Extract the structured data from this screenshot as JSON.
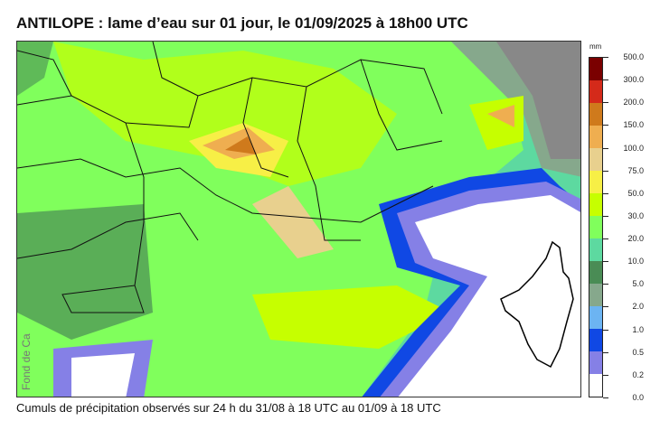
{
  "title": "ANTILOPE : lame d’eau sur 01 jour, le 01/09/2025 à 18h00 UTC",
  "caption": "Cumuls de précipitation observés sur 24 h du 31/08 à 18 UTC au 01/09 à 18 UTC",
  "watermark": "Fond de Ca",
  "legend": {
    "unit": "mm",
    "labels": [
      "500.0",
      "300.0",
      "200.0",
      "150.0",
      "100.0",
      "75.0",
      "50.0",
      "30.0",
      "20.0",
      "10.0",
      "5.0",
      "2.0",
      "1.0",
      "0.5",
      "0.2",
      "0.0"
    ],
    "colors": [
      "#7a0000",
      "#d42a1a",
      "#cf7a1c",
      "#efae50",
      "#e8d08e",
      "#f7ef46",
      "#c6ff00",
      "#80ff5c",
      "#5dd9a0",
      "#4a8c55",
      "#86a88c",
      "#6cb4f2",
      "#1048e4",
      "#8580e6",
      "#ffffff"
    ]
  }
}
